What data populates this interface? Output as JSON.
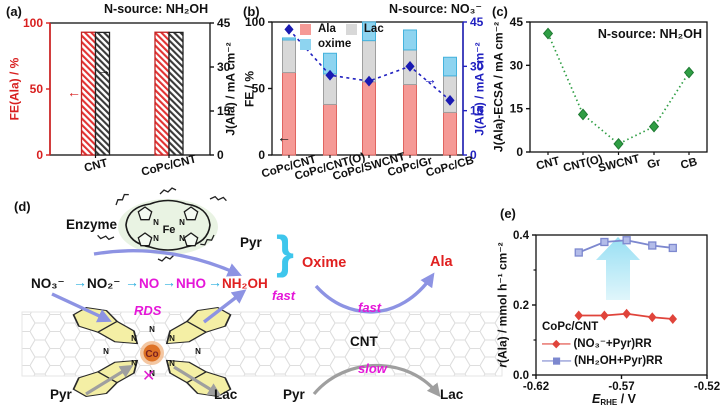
{
  "colors": {
    "red_accent": "#d81f1f",
    "blue_accent": "#2121c0",
    "green_accent": "#2f9e44",
    "magenta": "#e516d8",
    "cyan_arrow": "#29aede",
    "purple_arrow": "#8d93e3",
    "gray_arrow": "#9f9f9f",
    "cyan_big_arrow": "#8fdcf2",
    "black": "#111111"
  },
  "panels": {
    "a": {
      "label": "(a)"
    },
    "b": {
      "label": "(b)"
    },
    "c": {
      "label": "(c)"
    },
    "d": {
      "label": "(d)"
    },
    "e": {
      "label": "(e)"
    }
  },
  "chart_data": [
    {
      "panel": "a",
      "type": "bar",
      "title": "N-source: NH₂OH",
      "categories": [
        "CNT",
        "CoPc/CNT"
      ],
      "series": [
        {
          "name": "FE(Ala)",
          "axis": "left",
          "values": [
            93,
            93
          ],
          "style": "red-hatched"
        },
        {
          "name": "J(Ala)",
          "axis": "right",
          "values": [
            41.8,
            41.8
          ],
          "style": "black-hatched"
        }
      ],
      "ylabel_left": "FE(Ala) / %",
      "ylabel_right": "J(Ala) / mA cm⁻²",
      "yticks_left": [
        0,
        50,
        100
      ],
      "yticks_right": [
        0,
        15,
        30,
        45
      ],
      "ylim_left": [
        0,
        100
      ],
      "ylim_right": [
        0,
        45
      ],
      "arrow_left": "←",
      "arrow_right": "→"
    },
    {
      "panel": "b",
      "type": "stacked-bar-line",
      "title": "N-source: NO₃⁻",
      "categories": [
        "CoPc/CNT",
        "CoPc/CNT(O)",
        "CoPc/SWCNT",
        "CoPc/Gr",
        "CoPc/CB"
      ],
      "stacks": [
        {
          "name": "Ala",
          "color": "#f59a96",
          "border": "#e06560",
          "values": [
            62,
            38,
            55,
            53,
            32
          ]
        },
        {
          "name": "Lac",
          "color": "#d8d8d8",
          "border": "#9f9f9f",
          "values": [
            24.5,
            23,
            31,
            26,
            27.5
          ]
        },
        {
          "name": "oxime",
          "color": "#8ed4f0",
          "border": "#45b2dc",
          "values": [
            1.5,
            15.5,
            14,
            15,
            14
          ]
        }
      ],
      "line_series": {
        "name": "J(Ala)",
        "color": "#2121c0",
        "values": [
          42.5,
          27,
          25,
          30,
          18.5
        ]
      },
      "ylabel_left": "FE / %",
      "ylabel_right": "J(Ala) / mA cm⁻²",
      "yticks_left": [
        0,
        50,
        100
      ],
      "yticks_right": [
        0,
        15,
        30,
        45
      ],
      "ylim_left": [
        0,
        100
      ],
      "ylim_right": [
        0,
        45
      ],
      "arrow_left": "←",
      "arrow_right": "→"
    },
    {
      "panel": "c",
      "type": "line",
      "title": "N-source: NH₂OH",
      "categories": [
        "CNT",
        "CNT(O)",
        "SWCNT",
        "Gr",
        "CB"
      ],
      "values": [
        41,
        13,
        2.8,
        8.8,
        27.5
      ],
      "color": "#2f9e44",
      "ylabel": "J(Ala)-ECSA / mA cm⁻²",
      "yticks": [
        0,
        15,
        30,
        45
      ],
      "ylim": [
        0,
        45
      ]
    },
    {
      "panel": "e",
      "type": "line",
      "legend_title": "CoPc/CNT",
      "xlabel_parts": {
        "italic": "E",
        "sub": "RHE",
        "rest": " / V"
      },
      "ylabel_parts": {
        "italic": "r",
        "rest": "(Ala) / mmol h⁻¹ cm⁻²"
      },
      "xticks": [
        -0.62,
        -0.57,
        -0.52
      ],
      "yticks": [
        0.0,
        0.2,
        0.4
      ],
      "yticks_minor": [
        0.1,
        0.3
      ],
      "xlim": [
        -0.62,
        -0.52
      ],
      "ylim": [
        0,
        0.4
      ],
      "series": [
        {
          "name": "(NO₃⁻+Pyr)RR",
          "color": "#e0443b",
          "marker": "diamond",
          "x": [
            -0.595,
            -0.58,
            -0.567,
            -0.552,
            -0.54
          ],
          "y": [
            0.17,
            0.17,
            0.175,
            0.165,
            0.16
          ]
        },
        {
          "name": "(NH₂OH+Pyr)RR",
          "color": "#7d88cf",
          "marker": "square",
          "x": [
            -0.595,
            -0.58,
            -0.567,
            -0.552,
            -0.54
          ],
          "y": [
            0.35,
            0.38,
            0.385,
            0.37,
            0.363
          ]
        }
      ]
    }
  ],
  "diagram": {
    "label": "(d)",
    "enzyme": "Enzyme",
    "fe": "Fe",
    "co": "Co",
    "n": "N",
    "pathway": [
      {
        "text": "NO₃⁻"
      },
      {
        "text": "NO₂⁻"
      },
      {
        "text": "NO"
      },
      {
        "text": "NHO"
      },
      {
        "text": "NH₂OH"
      }
    ],
    "step_arrow": "→",
    "pyr_top": "Pyr",
    "brace": "}",
    "oxime": "Oxime",
    "ala": "Ala",
    "rds": "RDS",
    "cnt": "CNT",
    "fast_left": "fast",
    "fast_right": "fast",
    "slow": "slow",
    "pyr_bottom_left": "Pyr",
    "lac_bottom_left": "Lac",
    "pyr_bottom_mid": "Pyr",
    "lac_bottom_right": "Lac",
    "blocked_mark": "✕"
  }
}
